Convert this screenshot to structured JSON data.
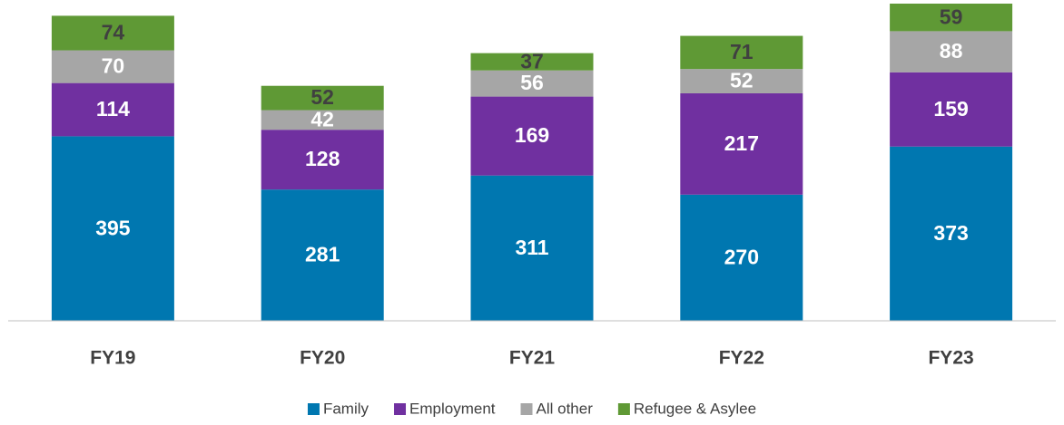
{
  "chart_data": {
    "type": "stacked_bar",
    "categories": [
      "FY19",
      "FY20",
      "FY21",
      "FY22",
      "FY23"
    ],
    "series": [
      {
        "name": "Family",
        "color": "#0077b0",
        "values": [
          395,
          281,
          311,
          270,
          373
        ]
      },
      {
        "name": "Employment",
        "color": "#7030a0",
        "values": [
          114,
          128,
          169,
          217,
          159
        ]
      },
      {
        "name": "All other",
        "color": "#a6a6a6",
        "values": [
          70,
          42,
          56,
          52,
          88
        ]
      },
      {
        "name": "Refugee & Asylee",
        "color": "#5f9935",
        "values": [
          74,
          52,
          37,
          71,
          59
        ]
      }
    ],
    "legend": "bottom"
  }
}
